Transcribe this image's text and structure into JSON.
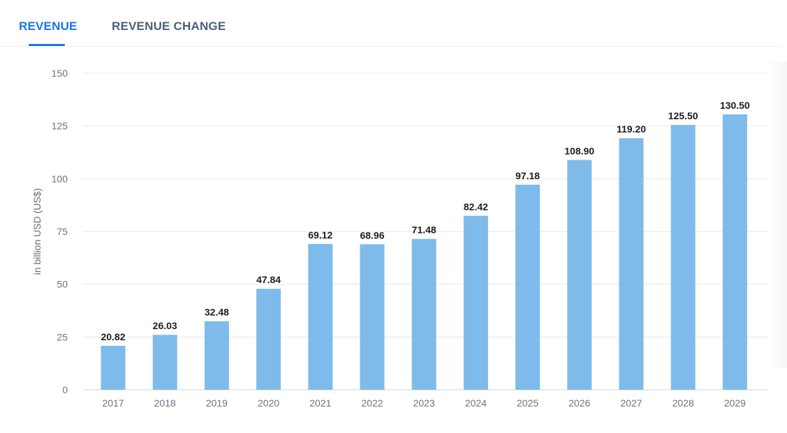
{
  "tabs": {
    "revenue_label": "REVENUE",
    "revenue_change_label": "REVENUE CHANGE"
  },
  "colors": {
    "accent": "#1a73e8",
    "bar": "#7fbbea",
    "grid": "#e3e7ec"
  },
  "chart_data": {
    "type": "bar",
    "categories": [
      "2017",
      "2018",
      "2019",
      "2020",
      "2021",
      "2022",
      "2023",
      "2024",
      "2025",
      "2026",
      "2027",
      "2028",
      "2029"
    ],
    "values": [
      20.82,
      26.03,
      32.48,
      47.84,
      69.12,
      68.96,
      71.48,
      82.42,
      97.18,
      108.9,
      119.2,
      125.5,
      130.5
    ],
    "value_labels": [
      "20.82",
      "26.03",
      "32.48",
      "47.84",
      "69.12",
      "68.96",
      "71.48",
      "82.42",
      "97.18",
      "108.90",
      "119.20",
      "125.50",
      "130.50"
    ],
    "yticks": [
      0,
      25,
      50,
      75,
      100,
      125,
      150
    ],
    "ylabel": "in billion USD (US$)",
    "xlabel": "",
    "ylim": [
      0,
      150
    ],
    "grid": true
  }
}
